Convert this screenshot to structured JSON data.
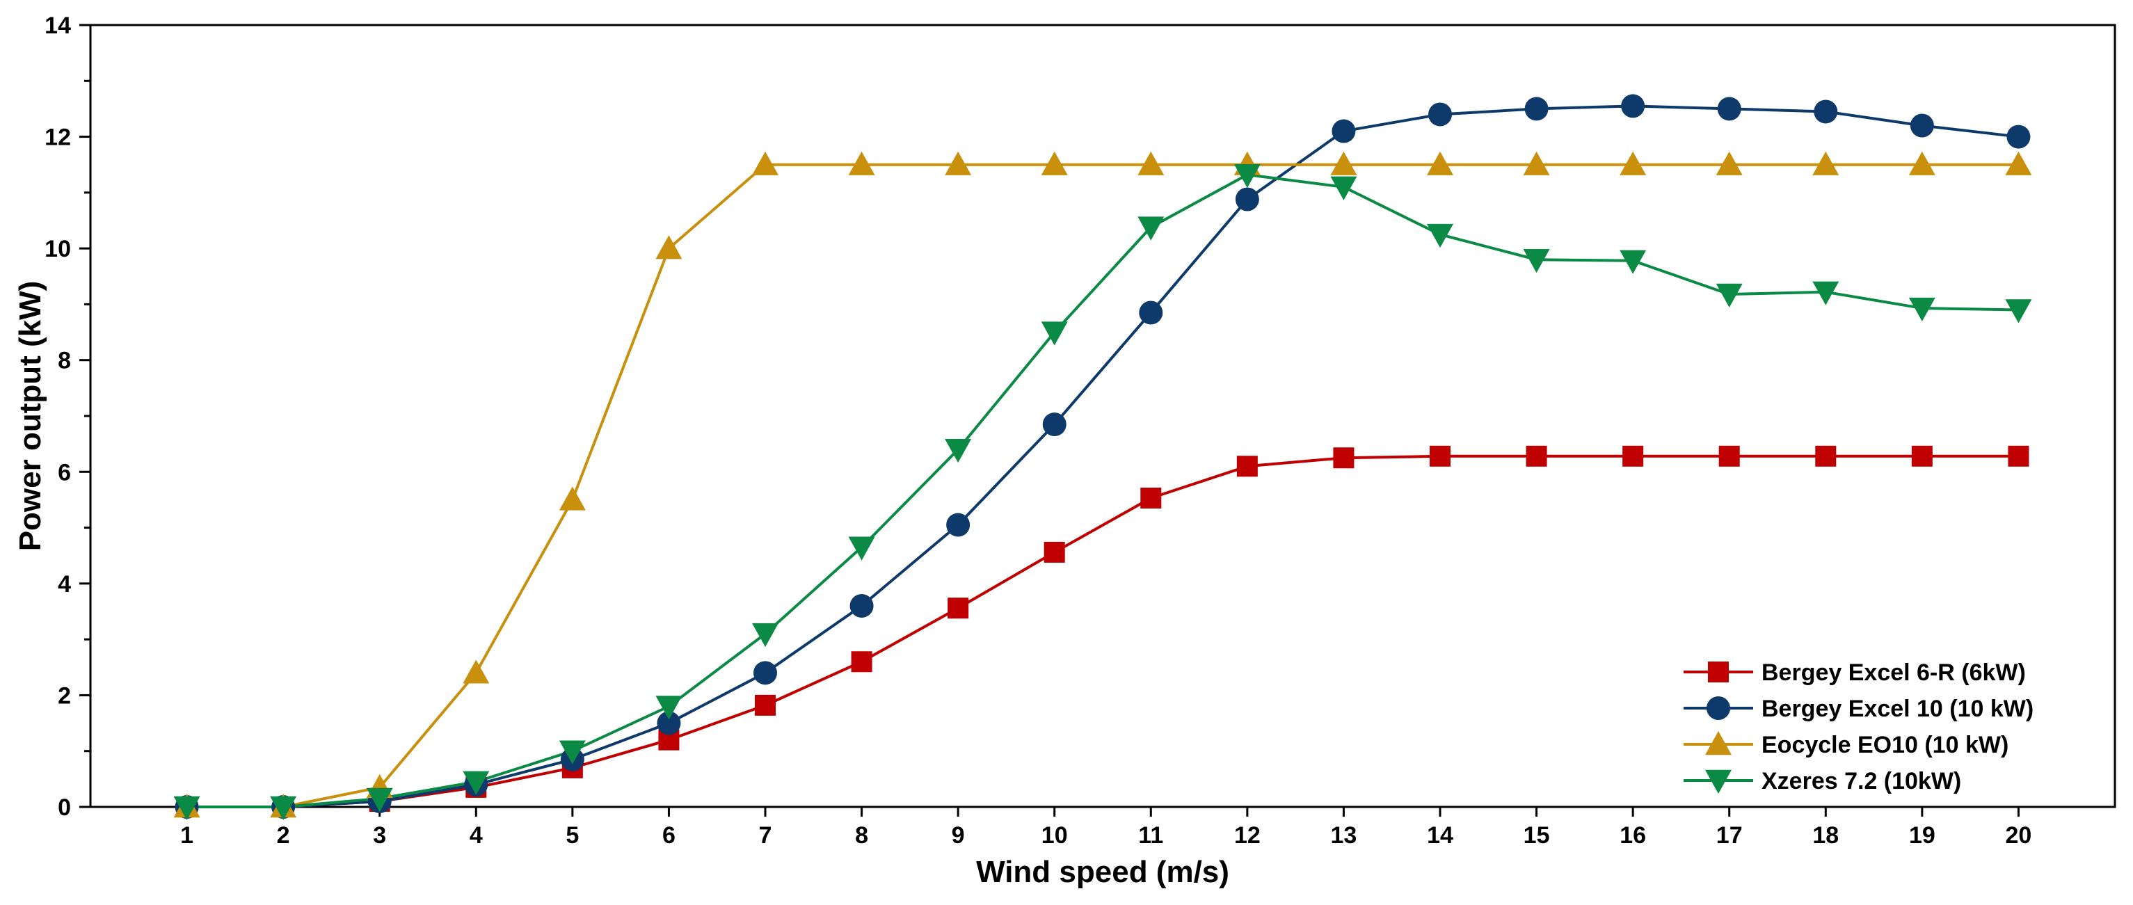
{
  "chart_data": {
    "type": "line",
    "title": "",
    "xlabel": "Wind speed (m/s)",
    "ylabel": "Power output (kW)",
    "xlim": [
      0,
      21
    ],
    "ylim": [
      0,
      14
    ],
    "x": [
      1,
      2,
      3,
      4,
      5,
      6,
      7,
      8,
      9,
      10,
      11,
      12,
      13,
      14,
      15,
      16,
      17,
      18,
      19,
      20
    ],
    "xticks": [
      "1",
      "2",
      "3",
      "4",
      "5",
      "6",
      "7",
      "8",
      "9",
      "10",
      "11",
      "12",
      "13",
      "14",
      "15",
      "16",
      "17",
      "18",
      "19",
      "20"
    ],
    "yticks": [
      "0",
      "2",
      "4",
      "6",
      "8",
      "10",
      "12",
      "14"
    ],
    "ytick_values": [
      0,
      2,
      4,
      6,
      8,
      10,
      12,
      14
    ],
    "legend_position": "bottom-right",
    "grid": false,
    "series": [
      {
        "name": "Bergey Excel 6-R (6kW)",
        "color": "#c00000",
        "marker": "square",
        "values": [
          0,
          0,
          0.1,
          0.35,
          0.7,
          1.2,
          1.82,
          2.6,
          3.56,
          4.56,
          5.53,
          6.1,
          6.25,
          6.28,
          6.28,
          6.28,
          6.28,
          6.28,
          6.28,
          6.28
        ]
      },
      {
        "name": "Bergey Excel 10 (10 kW)",
        "color": "#0d3a6b",
        "marker": "circle",
        "values": [
          0,
          0,
          0.1,
          0.4,
          0.85,
          1.5,
          2.4,
          3.6,
          5.05,
          6.85,
          8.85,
          10.88,
          12.1,
          12.4,
          12.5,
          12.55,
          12.5,
          12.45,
          12.2,
          12.0
        ]
      },
      {
        "name": "Eocycle EO10 (10 kW)",
        "color": "#c8900c",
        "marker": "triangle-up",
        "values": [
          0,
          0,
          0.35,
          2.4,
          5.5,
          10.0,
          11.5,
          11.5,
          11.5,
          11.5,
          11.5,
          11.5,
          11.5,
          11.5,
          11.5,
          11.5,
          11.5,
          11.5,
          11.5,
          11.5
        ]
      },
      {
        "name": "Xzeres 7.2 (10kW)",
        "color": "#0a8a44",
        "marker": "triangle-down",
        "values": [
          0,
          0,
          0.15,
          0.45,
          1.0,
          1.8,
          3.1,
          4.65,
          6.4,
          8.5,
          10.38,
          11.32,
          11.1,
          10.25,
          9.8,
          9.78,
          9.18,
          9.22,
          8.93,
          8.9
        ]
      }
    ]
  }
}
